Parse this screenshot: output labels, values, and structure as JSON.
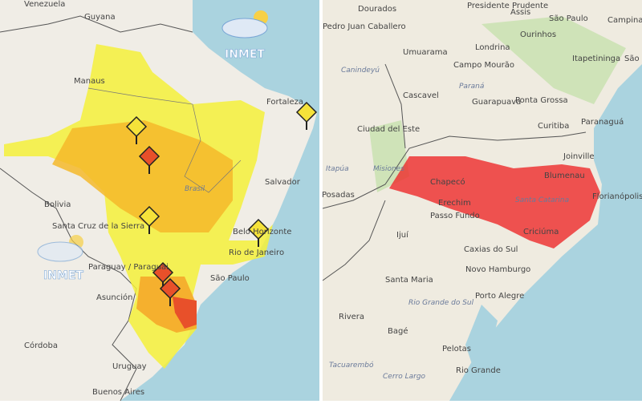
{
  "left_map": {
    "logos": [
      "INMET",
      "INMET"
    ],
    "labels": [
      "Venezuela",
      "Guyana",
      "Manaus",
      "Fortaleza",
      "Salvador",
      "Brasil",
      "Bolivia",
      "Santa Cruz de la Sierra",
      "Paraguay / Paraguai",
      "Asunción",
      "Belo Horizonte",
      "Rio de Janeiro",
      "São Paulo",
      "Córdoba",
      "Uruguay",
      "Buenos Aires"
    ]
  },
  "right_map": {
    "labels": [
      "Dourados",
      "Pedro Juan Caballero",
      "Presidente Prudente",
      "Assis",
      "São Paulo",
      "Campinas",
      "Ourinhos",
      "Itapetininga",
      "São Ro",
      "Londrina",
      "Umuarama",
      "Campo Mourão",
      "Paraná",
      "Cascavel",
      "Guarapuava",
      "Ponta Grossa",
      "Curitiba",
      "Paranaguá",
      "Ciudad del Este",
      "Canindeyú",
      "Itapúa",
      "Misiones",
      "Posadas",
      "Chapecó",
      "Erechim",
      "Passo Fundo",
      "Joinville",
      "Blumenau",
      "Florianópolis",
      "Santa Catarina",
      "Criciúma",
      "Ijuí",
      "Caxias do Sul",
      "Novo Hamburgo",
      "Santa Maria",
      "Porto Alegre",
      "Rio Grande do Sul",
      "Rivera",
      "Bagé",
      "Pelotas",
      "Rio Grande",
      "Tacuarembó",
      "Cerro Largo"
    ]
  }
}
